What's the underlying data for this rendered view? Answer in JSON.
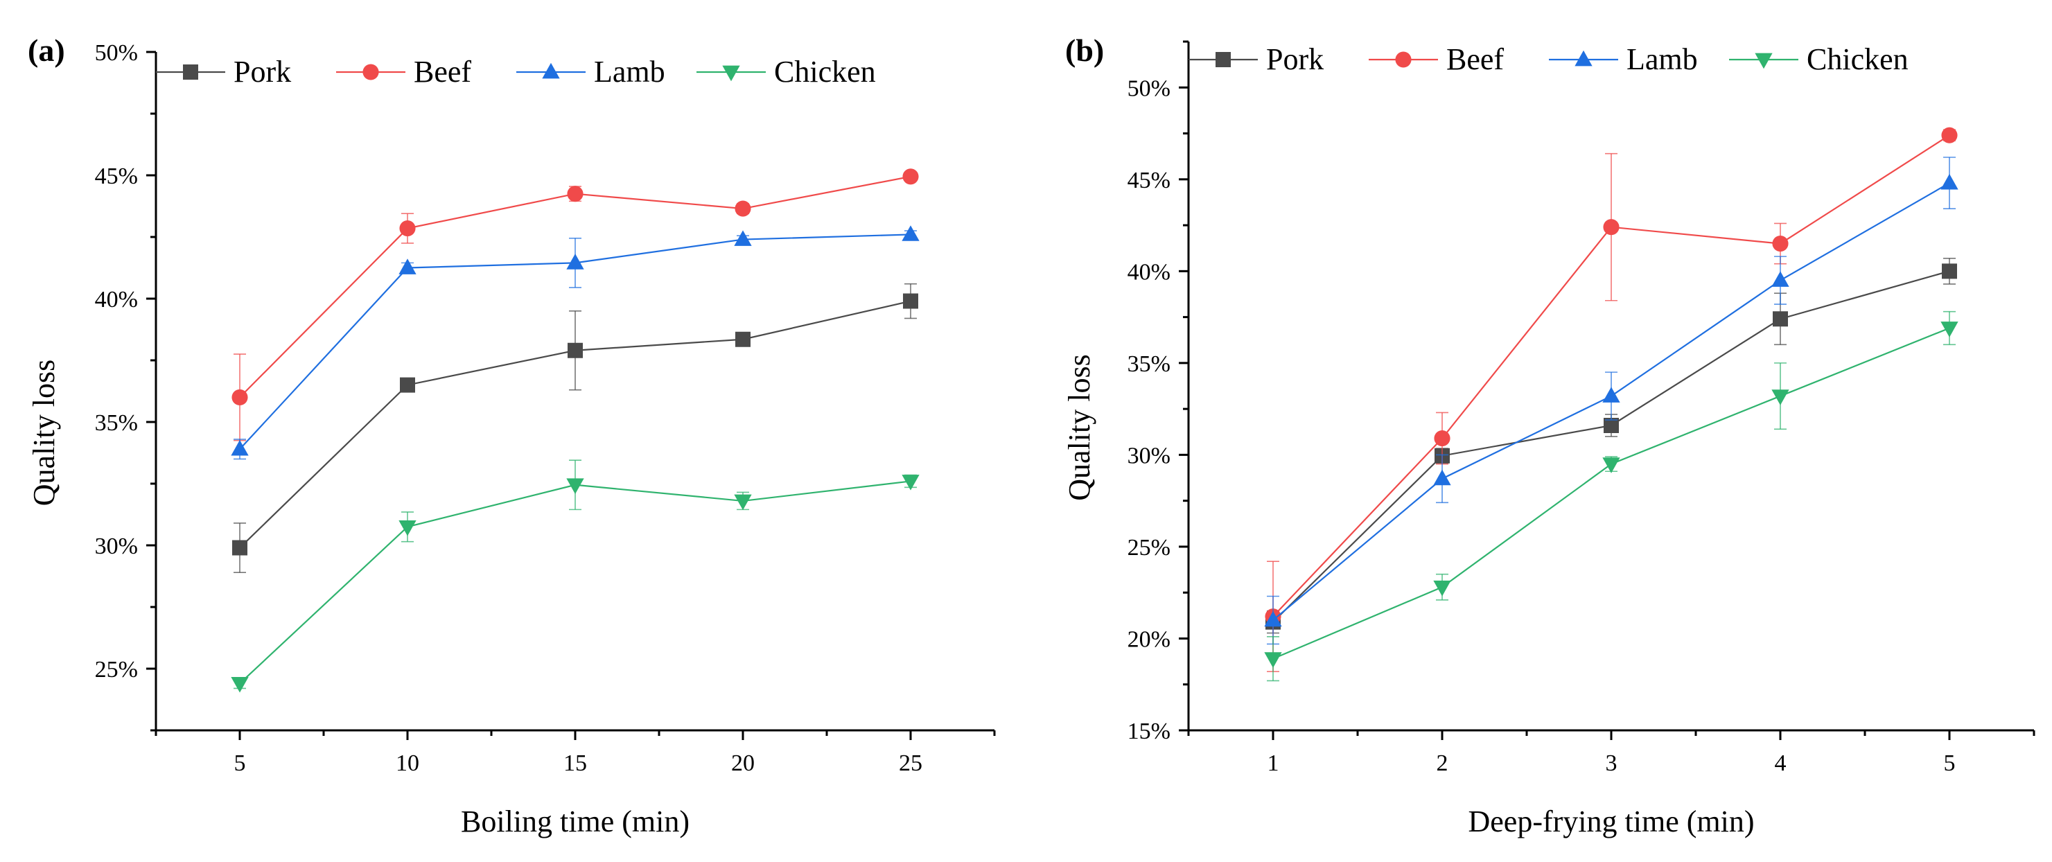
{
  "chart_data": [
    {
      "panel_label": "(a)",
      "type": "line",
      "xlabel": "Boiling time (min)",
      "ylabel": "Quality loss",
      "x": [
        5,
        10,
        15,
        20,
        25
      ],
      "x_ticks": [
        "5",
        "10",
        "15",
        "20",
        "25"
      ],
      "xlim": [
        2.5,
        27.5
      ],
      "ylim": [
        22.5,
        50
      ],
      "y_ticks": [
        25,
        30,
        35,
        40,
        45,
        50
      ],
      "y_tick_labels": [
        "25%",
        "30%",
        "35%",
        "40%",
        "45%",
        "50%"
      ],
      "legend_position": "top",
      "series": [
        {
          "name": "Pork",
          "color": "#4a4a4a",
          "marker": "square",
          "values": [
            29.9,
            36.5,
            37.9,
            38.35,
            39.9
          ],
          "errors": [
            1.0,
            0.2,
            1.6,
            0.2,
            0.7
          ]
        },
        {
          "name": "Beef",
          "color": "#f04a4a",
          "marker": "circle",
          "values": [
            36.0,
            42.85,
            44.25,
            43.65,
            44.95
          ],
          "errors": [
            1.75,
            0.6,
            0.3,
            0.2,
            0.15
          ]
        },
        {
          "name": "Lamb",
          "color": "#1f6fe0",
          "marker": "triangle-up",
          "values": [
            33.9,
            41.25,
            41.45,
            42.4,
            42.6
          ],
          "errors": [
            0.4,
            0.2,
            1.0,
            0.15,
            0.15
          ]
        },
        {
          "name": "Chicken",
          "color": "#2fb36e",
          "marker": "triangle-down",
          "values": [
            24.4,
            30.75,
            32.45,
            31.8,
            32.6
          ],
          "errors": [
            0.2,
            0.6,
            1.0,
            0.35,
            0.25
          ]
        }
      ]
    },
    {
      "panel_label": "(b)",
      "type": "line",
      "xlabel": "Deep-frying time (min)",
      "ylabel": "Quality loss",
      "x": [
        1,
        2,
        3,
        4,
        5
      ],
      "x_ticks": [
        "1",
        "2",
        "3",
        "4",
        "5"
      ],
      "xlim": [
        0.5,
        5.5
      ],
      "ylim": [
        15,
        52.5
      ],
      "y_ticks": [
        15,
        20,
        25,
        30,
        35,
        40,
        45,
        50
      ],
      "y_tick_labels": [
        "15%",
        "20%",
        "25%",
        "30%",
        "35%",
        "40%",
        "45%",
        "50%"
      ],
      "legend_position": "top",
      "series": [
        {
          "name": "Pork",
          "color": "#4a4a4a",
          "marker": "square",
          "values": [
            20.9,
            29.95,
            31.6,
            37.4,
            40.0
          ],
          "errors": [
            0.6,
            0.4,
            0.6,
            1.4,
            0.7
          ]
        },
        {
          "name": "Beef",
          "color": "#f04a4a",
          "marker": "circle",
          "values": [
            21.2,
            30.9,
            42.4,
            41.5,
            47.4
          ],
          "errors": [
            3.0,
            1.4,
            4.0,
            1.1,
            0.3
          ]
        },
        {
          "name": "Lamb",
          "color": "#1f6fe0",
          "marker": "triangle-up",
          "values": [
            21.0,
            28.7,
            33.2,
            39.5,
            44.8
          ],
          "errors": [
            1.3,
            1.3,
            1.3,
            1.3,
            1.4
          ]
        },
        {
          "name": "Chicken",
          "color": "#2fb36e",
          "marker": "triangle-down",
          "values": [
            18.9,
            22.8,
            29.5,
            33.2,
            36.9
          ],
          "errors": [
            1.2,
            0.7,
            0.4,
            1.8,
            0.9
          ]
        }
      ]
    }
  ]
}
